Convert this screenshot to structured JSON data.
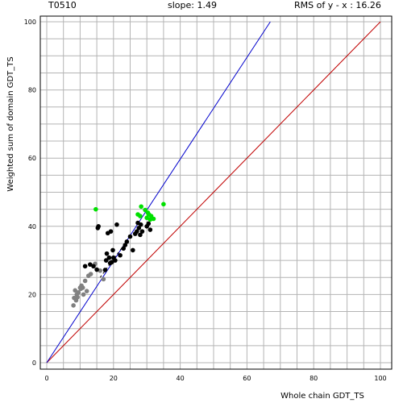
{
  "header": {
    "target": "T0510",
    "slope": "slope: 1.49",
    "rms": "RMS of  y - x : 16.26"
  },
  "chart_data": {
    "type": "scatter",
    "xlabel": "Whole chain GDT_TS",
    "ylabel": "Weighted sum of domain GDT_TS",
    "xlim": [
      0,
      100
    ],
    "ylim": [
      0,
      100
    ],
    "xticks": [
      0,
      20,
      40,
      60,
      80,
      100
    ],
    "yticks": [
      0,
      20,
      40,
      60,
      80,
      100
    ],
    "grid": true,
    "colors": {
      "grid": "#b4b4b4",
      "diagonal": "#c00000",
      "fit": "#0000cc",
      "black_points": "#000000",
      "gray_points": "#808080",
      "green_points": "#00e000"
    },
    "lines": [
      {
        "kind": "identity",
        "points": [
          [
            0,
            0
          ],
          [
            100,
            100
          ]
        ],
        "color": "#c00000"
      },
      {
        "kind": "fit",
        "points": [
          [
            0,
            0
          ],
          [
            67,
            100
          ]
        ],
        "color": "#0000cc"
      },
      {
        "kind": "dash",
        "points": [
          [
            16,
            25
          ],
          [
            25,
            37
          ]
        ],
        "color": "#000000"
      }
    ],
    "series": [
      {
        "color": "#808080",
        "points": [
          [
            8.0,
            16.8
          ],
          [
            8.2,
            19.0
          ],
          [
            8.5,
            21.2
          ],
          [
            8.8,
            18.3
          ],
          [
            9.0,
            20.0
          ],
          [
            9.2,
            19.2
          ],
          [
            9.5,
            20.6
          ],
          [
            10.0,
            22.0
          ],
          [
            10.2,
            21.7
          ],
          [
            10.4,
            22.6
          ],
          [
            10.8,
            22.0
          ],
          [
            11.0,
            20.0
          ],
          [
            11.5,
            24.0
          ],
          [
            12.0,
            21.0
          ],
          [
            12.5,
            25.5
          ],
          [
            13.2,
            26.0
          ],
          [
            14.5,
            29.0
          ],
          [
            16.0,
            27.0
          ],
          [
            17.0,
            24.5
          ]
        ]
      },
      {
        "color": "#000000",
        "points": [
          [
            11.5,
            28.3
          ],
          [
            13.0,
            28.8
          ],
          [
            14.0,
            28.3
          ],
          [
            15.0,
            27.3
          ],
          [
            15.3,
            39.5
          ],
          [
            15.5,
            40.0
          ],
          [
            17.5,
            27.2
          ],
          [
            17.8,
            30.0
          ],
          [
            18.0,
            32.0
          ],
          [
            18.3,
            38.0
          ],
          [
            18.7,
            30.8
          ],
          [
            19.0,
            29.2
          ],
          [
            19.2,
            38.5
          ],
          [
            19.5,
            29.5
          ],
          [
            19.8,
            33.0
          ],
          [
            20.0,
            30.8
          ],
          [
            20.5,
            30.0
          ],
          [
            21.0,
            40.5
          ],
          [
            22.0,
            31.5
          ],
          [
            23.0,
            33.5
          ],
          [
            23.5,
            34.5
          ],
          [
            24.0,
            35.5
          ],
          [
            25.0,
            37.0
          ],
          [
            25.8,
            33.0
          ],
          [
            26.5,
            37.8
          ],
          [
            27.0,
            38.5
          ],
          [
            27.3,
            41.0
          ],
          [
            27.6,
            39.5
          ],
          [
            28.0,
            37.5
          ],
          [
            28.2,
            40.5
          ],
          [
            28.6,
            38.5
          ],
          [
            30.0,
            40.0
          ],
          [
            30.5,
            40.8
          ],
          [
            31.0,
            39.0
          ]
        ]
      },
      {
        "color": "#00e000",
        "points": [
          [
            14.7,
            45.0
          ],
          [
            27.3,
            43.5
          ],
          [
            28.0,
            43.0
          ],
          [
            28.3,
            45.8
          ],
          [
            29.5,
            44.8
          ],
          [
            30.0,
            42.5
          ],
          [
            30.3,
            44.0
          ],
          [
            30.6,
            43.5
          ],
          [
            31.0,
            42.0
          ],
          [
            31.3,
            43.0
          ],
          [
            32.0,
            42.2
          ],
          [
            35.0,
            46.5
          ]
        ]
      }
    ]
  }
}
